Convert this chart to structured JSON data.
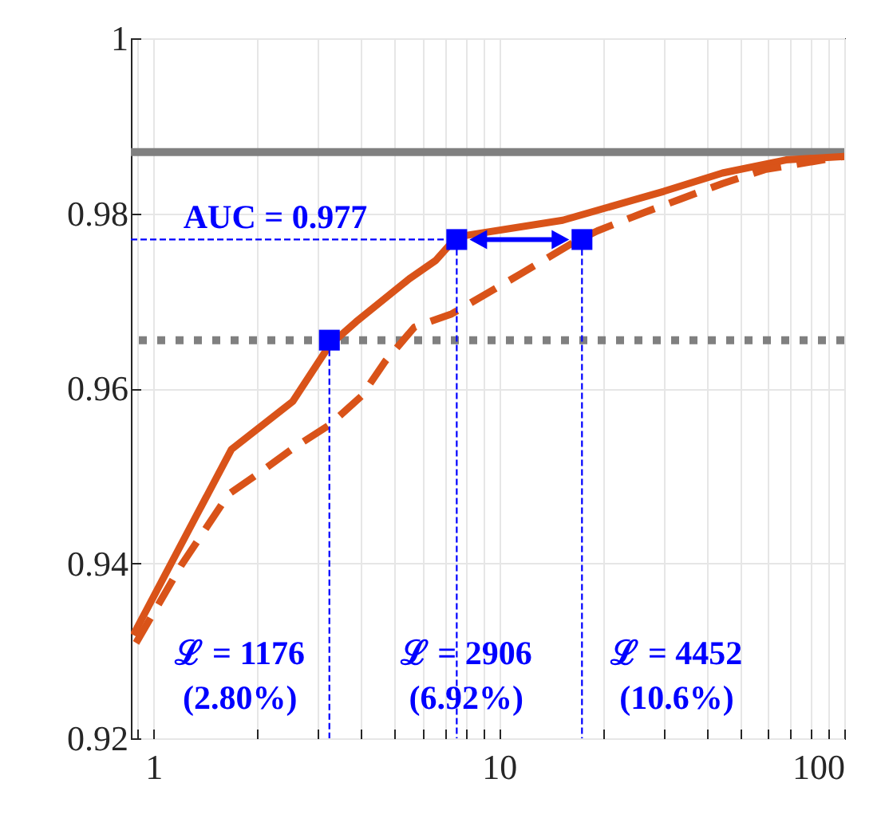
{
  "chart_data": {
    "type": "line",
    "xlim": [
      0.86,
      100
    ],
    "ylim": [
      0.92,
      1
    ],
    "log": "x",
    "xticks": [
      {
        "value": 0.9,
        "label": null
      },
      1,
      {
        "value": 2,
        "label": null
      },
      {
        "value": 3,
        "label": null
      },
      {
        "value": 4,
        "label": null
      },
      {
        "value": 5,
        "label": null
      },
      {
        "value": 6,
        "label": null
      },
      {
        "value": 7,
        "label": null
      },
      {
        "value": 8,
        "label": null
      },
      {
        "value": 9,
        "label": null
      },
      10,
      {
        "value": 20,
        "label": null
      },
      {
        "value": 30,
        "label": null
      },
      {
        "value": 40,
        "label": null
      },
      {
        "value": 50,
        "label": null
      },
      {
        "value": 60,
        "label": null
      },
      {
        "value": 70,
        "label": null
      },
      {
        "value": 80,
        "label": null
      },
      {
        "value": 90,
        "label": null
      },
      100
    ],
    "yticks": [
      0.92,
      0.94,
      0.96,
      0.98,
      1
    ],
    "grid": true,
    "series": [
      {
        "color": "#d95319",
        "line_style": "solid",
        "x": [
          0.874,
          1.68,
          2.53,
          3.23,
          3.86,
          5.5,
          6.56,
          7.55,
          15.3,
          30,
          44.4,
          67.8,
          100
        ],
        "values": [
          0.9318,
          0.953,
          0.9585,
          0.9649,
          0.9676,
          0.9725,
          0.9746,
          0.9773,
          0.9792,
          0.9825,
          0.9846,
          0.9861,
          0.9865
        ]
      },
      {
        "color": "#d95319",
        "line_style": "dashed",
        "x": [
          0.89,
          1.2,
          1.65,
          1.97,
          2.57,
          3.23,
          4.0,
          4.69,
          5.7,
          7.3,
          11.6,
          16.5,
          19.3,
          26,
          33.4,
          44.4,
          58.9,
          100
        ],
        "values": [
          0.9309,
          0.9397,
          0.9479,
          0.95,
          0.9533,
          0.9558,
          0.9591,
          0.9631,
          0.967,
          0.9685,
          0.9731,
          0.9767,
          0.978,
          0.98,
          0.9816,
          0.9834,
          0.985,
          0.9865
        ]
      },
      {
        "type": "line",
        "color": "#0000ff",
        "line_style": "dashed",
        "x": [
          0.86,
          7.55
        ],
        "values": [
          0.977,
          0.977
        ]
      },
      {
        "type": "line",
        "color": "#0000ff",
        "line_style": "dashed",
        "x": [
          3.23,
          3.23
        ],
        "values": [
          0.9655,
          0.92
        ]
      },
      {
        "type": "line",
        "color": "#0000ff",
        "line_style": "dashed",
        "x": [
          7.55,
          7.55
        ],
        "values": [
          0.977,
          0.92
        ]
      },
      {
        "type": "line",
        "color": "#0000ff",
        "line_style": "dashed",
        "x": [
          17.4,
          17.4
        ],
        "values": [
          0.977,
          0.92
        ]
      },
      {
        "type": "scatter",
        "color": "#0000ff",
        "marker": "square",
        "x": [
          3.23,
          7.55,
          17.4
        ],
        "values": [
          0.9655,
          0.977,
          0.977
        ]
      }
    ],
    "ref_lines": [
      {
        "axis": "y",
        "value": 0.987,
        "color": "#808080",
        "line_style": "solid"
      },
      {
        "axis": "y",
        "value": 0.9655,
        "color": "#808080",
        "line_style": "dotted"
      }
    ],
    "annotations": [
      {
        "text": "AUC = 0.977",
        "x": 1.22,
        "y": 0.977
      },
      "ℒ = 1176\n(2.80%)",
      "ℒ = 2906\n(6.92%)",
      "ℒ = 4452\n(10.6%)"
    ]
  }
}
